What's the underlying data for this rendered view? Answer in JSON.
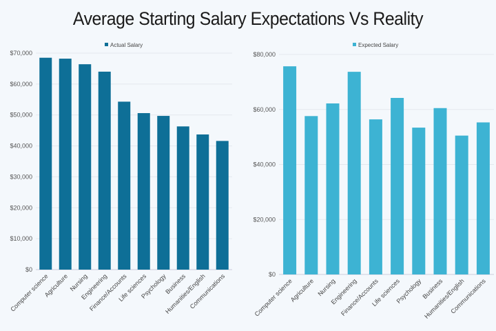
{
  "title": "Average Starting Salary Expectations Vs Reality",
  "chart_data": [
    {
      "type": "bar",
      "categories": [
        "Computer science",
        "Agriculture",
        "Nursing",
        "Engineering",
        "Finance/Accounts",
        "Life sciences",
        "Psychology",
        "Business",
        "Humanities/English",
        "Communications"
      ],
      "series": [
        {
          "name": "Actual Salary",
          "values": [
            68500,
            68200,
            66400,
            64000,
            54300,
            50600,
            49700,
            46300,
            43700,
            41600
          ],
          "color": "#0e6f97"
        }
      ],
      "ylim": [
        0,
        70000
      ],
      "yticks": [
        "$0",
        "$10,000",
        "$20,000",
        "$30,000",
        "$40,000",
        "$50,000",
        "$60,000",
        "$70,000"
      ],
      "grid": true,
      "legend": "top"
    },
    {
      "type": "bar",
      "categories": [
        "Computer science",
        "Agriculture",
        "Nursing",
        "Engineering",
        "Finance/Accounts",
        "Life sciences",
        "Psychology",
        "Business",
        "Humanities/English",
        "Communications"
      ],
      "series": [
        {
          "name": "Expected Salary",
          "values": [
            75700,
            57600,
            62200,
            73700,
            56400,
            64200,
            53400,
            60500,
            50500,
            55300
          ],
          "color": "#3db3d3"
        }
      ],
      "ylim": [
        0,
        80000
      ],
      "yticks": [
        "$0",
        "$20,000",
        "$40,000",
        "$60,000",
        "$80,000"
      ],
      "grid": true,
      "legend": "top"
    }
  ]
}
